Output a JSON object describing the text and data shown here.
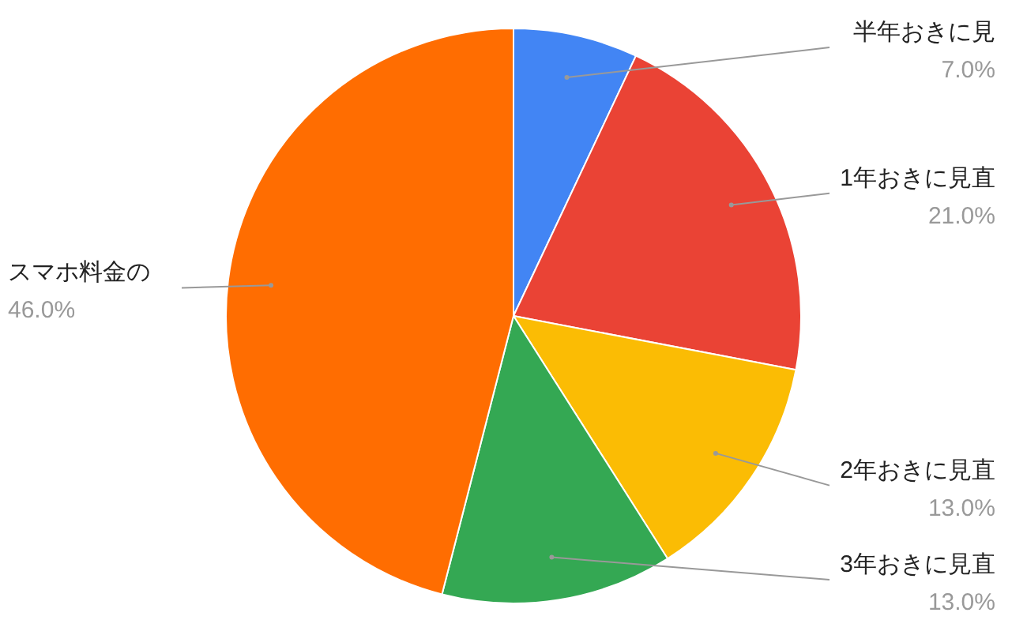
{
  "chart_data": {
    "type": "pie",
    "categories": [
      "半年おきに見",
      "1年おきに見直",
      "2年おきに見直",
      "3年おきに見直",
      "スマホ料金の"
    ],
    "values": [
      7.0,
      21.0,
      13.0,
      13.0,
      46.0
    ],
    "colors": [
      "#4285f4",
      "#ea4335",
      "#fbbc04",
      "#34a853",
      "#ff6d01"
    ],
    "value_labels": [
      "7.0%",
      "21.0%",
      "13.0%",
      "13.0%",
      "46.0%"
    ]
  }
}
